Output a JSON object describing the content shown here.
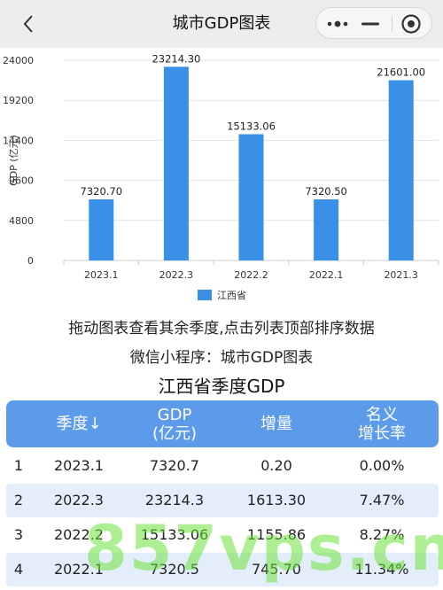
{
  "nav": {
    "title": "城市GDP图表"
  },
  "chart_data": {
    "type": "bar",
    "categories": [
      "2023.1",
      "2022.3",
      "2022.2",
      "2022.1",
      "2021.3"
    ],
    "series": [
      {
        "name": "江西省",
        "values": [
          7320.7,
          23214.3,
          15133.06,
          7320.5,
          21601.0
        ],
        "color": "#3a8fe6"
      }
    ],
    "data_labels": [
      "7320.70",
      "23214.30",
      "15133.06",
      "7320.50",
      "21601.00"
    ],
    "yticks": [
      0,
      4800,
      9600,
      14400,
      19200,
      24000
    ],
    "ylim": [
      0,
      24000
    ],
    "ylabel": "GDP (亿元)",
    "xlabel": "",
    "grid": true,
    "legend_position": "bottom"
  },
  "notes": {
    "line1": "拖动图表查看其余季度,点击列表顶部排序数据",
    "line2": "微信小程序：城市GDP图表"
  },
  "table": {
    "title": "江西省季度GDP",
    "headers": {
      "quarter": "季度↓",
      "gdp": "GDP\n(亿元)",
      "increase": "增量",
      "growth": "名义\n增长率"
    },
    "rows": [
      {
        "rank": "1",
        "quarter": "2023.1",
        "gdp": "7320.7",
        "increase": "0.20",
        "growth": "0.00%"
      },
      {
        "rank": "2",
        "quarter": "2022.3",
        "gdp": "23214.3",
        "increase": "1613.30",
        "growth": "7.47%"
      },
      {
        "rank": "3",
        "quarter": "2022.2",
        "gdp": "15133.06",
        "increase": "1155.86",
        "growth": "8.27%"
      },
      {
        "rank": "4",
        "quarter": "2022.1",
        "gdp": "7320.5",
        "increase": "745.70",
        "growth": "11.34%"
      }
    ]
  },
  "watermark": "857vps.cn"
}
